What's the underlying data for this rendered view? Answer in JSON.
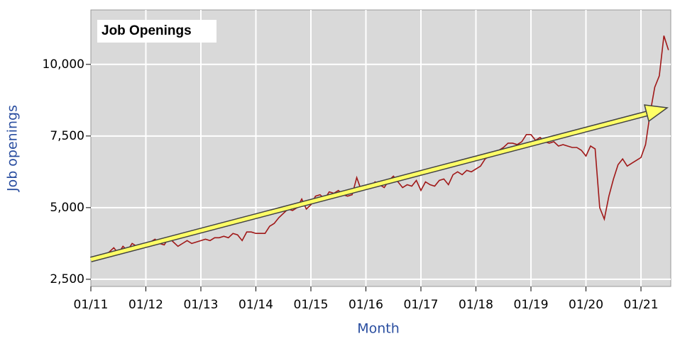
{
  "chart_data": {
    "type": "line",
    "title": "Job Openings",
    "x_label": "Month",
    "y_label": "Job openings",
    "categories": [
      "01/11",
      null,
      null,
      null,
      null,
      null,
      null,
      null,
      null,
      null,
      null,
      null,
      "01/12",
      null,
      null,
      null,
      null,
      null,
      null,
      null,
      null,
      null,
      null,
      null,
      "01/13",
      null,
      null,
      null,
      null,
      null,
      null,
      null,
      null,
      null,
      null,
      null,
      "01/14",
      null,
      null,
      null,
      null,
      null,
      null,
      null,
      null,
      null,
      null,
      null,
      "01/15",
      null,
      null,
      null,
      null,
      null,
      null,
      null,
      null,
      null,
      null,
      null,
      "01/16",
      null,
      null,
      null,
      null,
      null,
      null,
      null,
      null,
      null,
      null,
      null,
      "01/17",
      null,
      null,
      null,
      null,
      null,
      null,
      null,
      null,
      null,
      null,
      null,
      "01/18",
      null,
      null,
      null,
      null,
      null,
      null,
      null,
      null,
      null,
      null,
      null,
      "01/19",
      null,
      null,
      null,
      null,
      null,
      null,
      null,
      null,
      null,
      null,
      null,
      "01/20",
      null,
      null,
      null,
      null,
      null,
      null,
      null,
      null,
      null,
      null,
      null,
      "01/21",
      null,
      null,
      null,
      null,
      null,
      null
    ],
    "series": [
      {
        "name": "Job Openings",
        "color": "#a01818",
        "values": [
          3200,
          3250,
          3200,
          3350,
          3450,
          3600,
          3400,
          3650,
          3500,
          3750,
          3650,
          3600,
          3750,
          3800,
          3900,
          3750,
          3700,
          3950,
          3800,
          3650,
          3750,
          3850,
          3750,
          3800,
          3850,
          3900,
          3850,
          3950,
          3950,
          4000,
          3950,
          4100,
          4050,
          3850,
          4150,
          4150,
          4100,
          4100,
          4100,
          4350,
          4450,
          4650,
          4800,
          4950,
          4900,
          5000,
          5300,
          4950,
          5100,
          5400,
          5450,
          5300,
          5550,
          5500,
          5600,
          5450,
          5400,
          5450,
          6050,
          5600,
          5700,
          5750,
          5900,
          5800,
          5700,
          5950,
          6100,
          5900,
          5700,
          5800,
          5750,
          5950,
          5600,
          5900,
          5800,
          5750,
          5950,
          6000,
          5800,
          6150,
          6250,
          6150,
          6300,
          6250,
          6350,
          6450,
          6700,
          6800,
          6850,
          7000,
          7100,
          7250,
          7250,
          7200,
          7300,
          7550,
          7550,
          7350,
          7450,
          7300,
          7250,
          7300,
          7150,
          7200,
          7150,
          7100,
          7100,
          7000,
          6800,
          7150,
          7050,
          5000,
          4600,
          5400,
          6000,
          6500,
          6700,
          6450,
          6550,
          6650,
          6750,
          7200,
          8300,
          9200,
          9600,
          11000,
          10500
        ]
      }
    ],
    "ylim": [
      2250,
      11900
    ],
    "yticks": [
      {
        "value": 2500,
        "label": "2,500"
      },
      {
        "value": 5000,
        "label": "5,000"
      },
      {
        "value": 7500,
        "label": "7,500"
      },
      {
        "value": 10000,
        "label": "10,000"
      }
    ],
    "grid": true
  }
}
